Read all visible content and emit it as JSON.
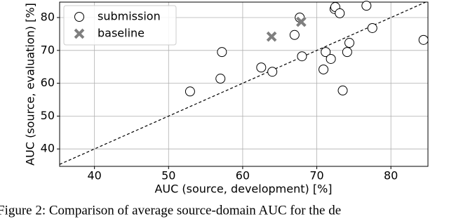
{
  "chart_data": {
    "type": "scatter",
    "caption": "Figure 2: Comparison of average source-domain AUC for the de",
    "xlabel": "AUC (source, development)  [%]",
    "ylabel": "AUC (source, evaluation) [%]",
    "xlim": [
      35.3,
      85
    ],
    "ylim": [
      34.7,
      84.7
    ],
    "xticks": [
      40,
      50,
      60,
      70,
      80
    ],
    "yticks": [
      40,
      50,
      60,
      70,
      80
    ],
    "grid": true,
    "legend": "upper left",
    "series": [
      {
        "name": "submission",
        "color": "#ffffff",
        "x": [
          52.9,
          57.0,
          57.2,
          62.5,
          64.0,
          67.0,
          67.7,
          68.0,
          70.9,
          71.2,
          71.9,
          72.4,
          72.5,
          73.1,
          73.5,
          74.1,
          74.4,
          76.7,
          77.5,
          84.4
        ],
        "values": [
          57.5,
          61.4,
          69.5,
          64.8,
          63.5,
          74.7,
          80.0,
          68.2,
          64.2,
          69.5,
          67.4,
          82.6,
          83.2,
          81.3,
          57.8,
          69.5,
          72.3,
          83.6,
          76.8,
          73.2
        ]
      },
      {
        "name": "baseline",
        "color": "#7f7f7f",
        "x": [
          63.9,
          67.9
        ],
        "values": [
          74.2,
          78.7
        ]
      }
    ]
  }
}
